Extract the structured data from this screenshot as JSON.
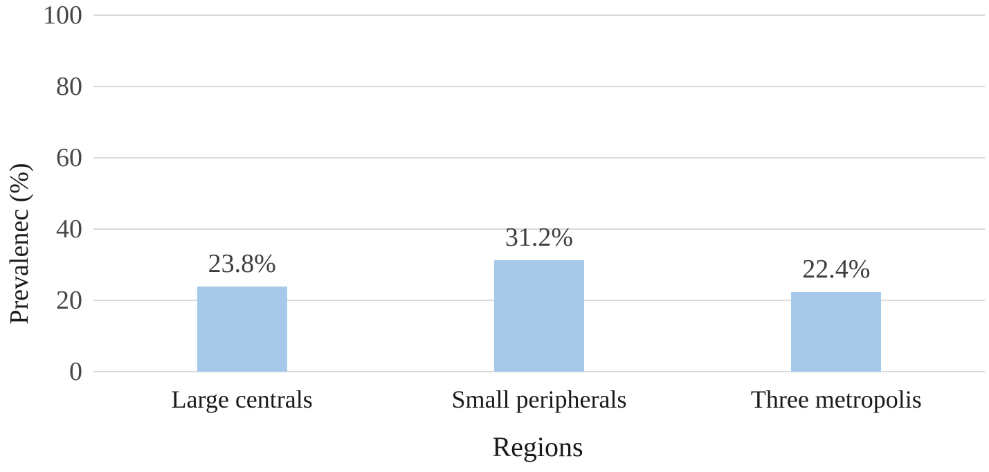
{
  "chart_data": {
    "type": "bar",
    "title": "",
    "categories": [
      "Large centrals",
      "Small peripherals",
      "Three metropolis"
    ],
    "values": [
      23.8,
      31.2,
      22.4
    ],
    "value_labels": [
      "23.8%",
      "31.2%",
      "22.4%"
    ],
    "xlabel": "Regions",
    "ylabel": "Prevalenec (%)",
    "ylim": [
      0,
      100
    ],
    "yticks": [
      0,
      20,
      40,
      60,
      80,
      100
    ],
    "grid": "horizontal",
    "legend": "none",
    "bar_color": "#a6c9ea",
    "gridline_color": "#d9d9d9",
    "background_color": "#ffffff",
    "text_color": "#3d3d3d"
  }
}
